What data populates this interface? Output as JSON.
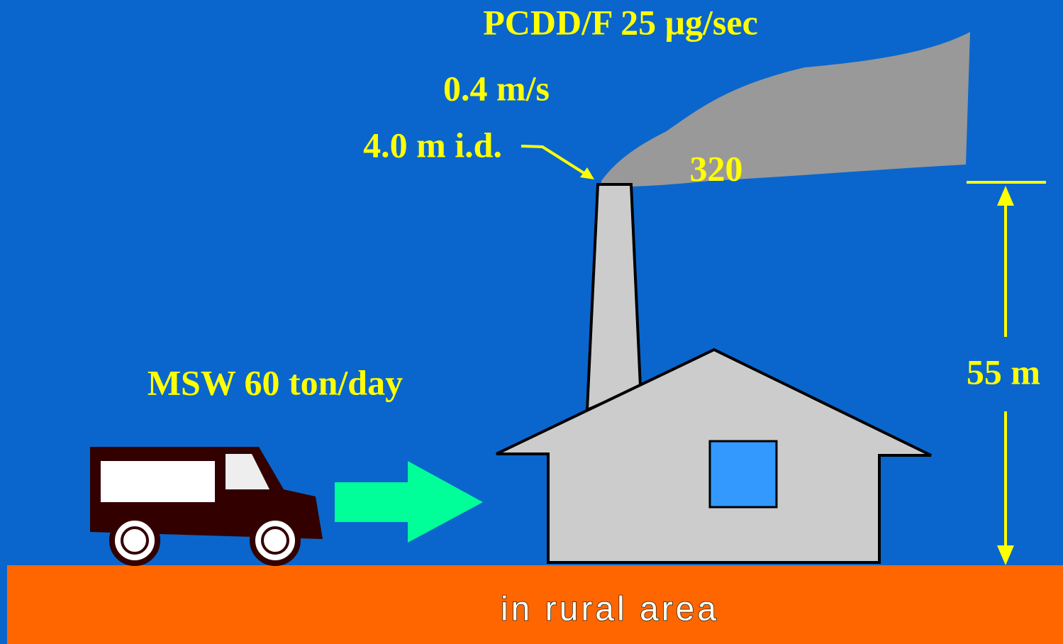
{
  "labels": {
    "emission": "PCDD/F 25 μg/sec",
    "velocity": "0.4 m/s",
    "diameter": "4.0 m i.d.",
    "temperature": "320",
    "waste": "MSW 60 ton/day",
    "height": "55 m",
    "location": "in rural area"
  }
}
